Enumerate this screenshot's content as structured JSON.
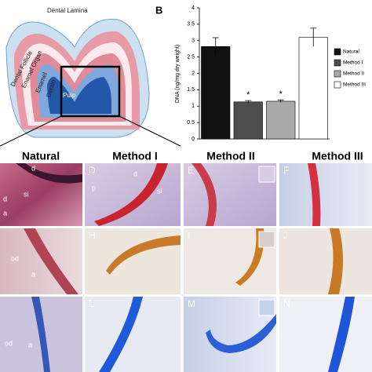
{
  "chart_data": {
    "type": "bar",
    "panel_label": "B",
    "y_label": "DNA (ng/mg dry weight)",
    "categories": [
      "Natural",
      "Method I",
      "Method II",
      "Method III"
    ],
    "values": [
      2.82,
      1.13,
      1.15,
      3.1
    ],
    "errors": [
      0.27,
      0.04,
      0.04,
      0.28
    ],
    "colors": [
      "#111111",
      "#4d4d4d",
      "#a9a9a9",
      "#ffffff"
    ],
    "significance": [
      null,
      "*",
      "*",
      null
    ],
    "ylim": [
      0,
      4
    ],
    "yticks": [
      0,
      0.5,
      1,
      1.5,
      2,
      2.5,
      3,
      3.5,
      4
    ],
    "legend": "right"
  },
  "diagram": {
    "labels": [
      "Dental Lamina",
      "Dental Follicle",
      "Enamel Organ",
      "Enamel",
      "Dentin",
      "Pulp"
    ]
  },
  "columns": [
    "Natural",
    "Method I",
    "Method II",
    "Method III"
  ],
  "panels": [
    [
      "D",
      "E",
      "F"
    ],
    [
      "H",
      "I",
      "J"
    ],
    [
      "L",
      "M",
      "N"
    ]
  ],
  "tissue_labels": {
    "row1": [
      "d",
      "si",
      "a",
      "d",
      "p",
      "si",
      "d"
    ],
    "row2": [
      "od",
      "a"
    ],
    "row3": [
      "od",
      "a"
    ]
  }
}
